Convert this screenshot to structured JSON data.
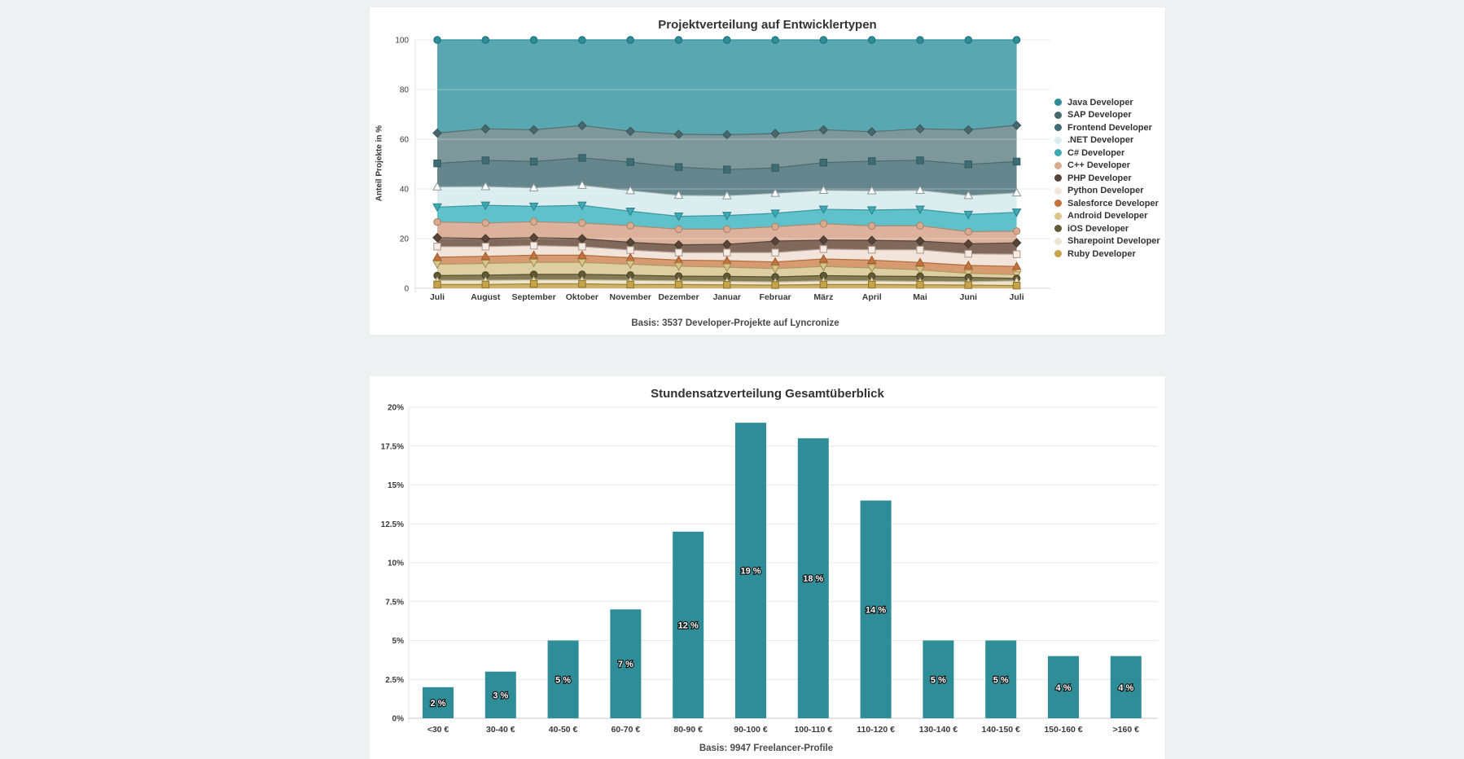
{
  "page": {
    "background_color": "#eff0f1",
    "card_color": "#ffffff"
  },
  "chart_data": [
    {
      "type": "area",
      "stacked": true,
      "title": "Projektverteilung auf Entwicklertypen",
      "ylabel": "Anteil Projekte in %",
      "caption": "Basis: 3537 Developer-Projekte auf Lyncronize",
      "ylim": [
        0,
        100
      ],
      "y_ticks": [
        0,
        20,
        40,
        60,
        80,
        100
      ],
      "grid": true,
      "legend_position": "right",
      "categories": [
        "Juli",
        "August",
        "September",
        "Oktober",
        "November",
        "Dezember",
        "Januar",
        "Februar",
        "März",
        "April",
        "Mai",
        "Juni",
        "Juli"
      ],
      "series": [
        {
          "name": "Java Developer",
          "marker": "circle",
          "fill": "#58a7b1",
          "line": "#2e8e98",
          "marker_fill": "#2e8e98",
          "marker_stroke": "#1f6b74",
          "cumulative_top": [
            100,
            100,
            100,
            100,
            100,
            100,
            100,
            100,
            100,
            100,
            100,
            100,
            100
          ]
        },
        {
          "name": "SAP Developer",
          "marker": "diamond",
          "fill": "#7d979a",
          "line": "#566d6f",
          "marker_fill": "#47686c",
          "marker_stroke": "#3a5557",
          "cumulative_top": [
            62.5,
            64.2,
            63.8,
            65.5,
            63.2,
            62.0,
            61.8,
            62.3,
            63.8,
            63.0,
            64.2,
            63.8,
            65.6
          ]
        },
        {
          "name": "Frontend Developer",
          "marker": "square",
          "fill": "#65868d",
          "line": "#4d6a6d",
          "marker_fill": "#3e6d74",
          "marker_stroke": "#315a60",
          "cumulative_top": [
            50.3,
            51.5,
            51.0,
            52.5,
            50.8,
            48.8,
            47.8,
            48.5,
            50.6,
            51.2,
            51.5,
            49.9,
            51.0
          ]
        },
        {
          "name": ".NET Developer",
          "marker": "triangle-up",
          "fill": "#dcedef",
          "line": "#93a3a4",
          "marker_fill": "#fdfdfd",
          "marker_stroke": "#8a9a9b",
          "cumulative_top": [
            40.9,
            41.0,
            40.5,
            41.5,
            39.4,
            37.5,
            37.3,
            38.3,
            39.5,
            39.3,
            39.5,
            37.4,
            38.5
          ]
        },
        {
          "name": "C# Developer",
          "marker": "triangle-down",
          "fill": "#5fc1c9",
          "line": "#3b98a2",
          "marker_fill": "#3fa9b3",
          "marker_stroke": "#2d818b",
          "cumulative_top": [
            32.7,
            33.4,
            33.0,
            33.4,
            31.0,
            29.0,
            29.3,
            30.2,
            31.8,
            31.5,
            31.8,
            29.7,
            30.6
          ]
        },
        {
          "name": "C++ Developer",
          "marker": "circle",
          "fill": "#dcb29c",
          "line": "#ab8a74",
          "marker_fill": "#d8ab91",
          "marker_stroke": "#a87f62",
          "cumulative_top": [
            26.7,
            26.3,
            26.8,
            26.3,
            25.2,
            23.8,
            23.8,
            24.8,
            26.0,
            25.1,
            25.2,
            22.8,
            23.0
          ]
        },
        {
          "name": "PHP Developer",
          "marker": "diamond",
          "fill": "#80685a",
          "line": "#54473c",
          "marker_fill": "#57453a",
          "marker_stroke": "#453629",
          "cumulative_top": [
            20.4,
            20.0,
            20.4,
            20.0,
            18.5,
            17.5,
            17.7,
            19.0,
            19.4,
            19.3,
            19.0,
            17.9,
            18.3
          ]
        },
        {
          "name": "Python Developer",
          "marker": "square",
          "fill": "#f2e4db",
          "line": "#b3a096",
          "marker_fill": "#f7ece5",
          "marker_stroke": "#a99788",
          "cumulative_top": [
            16.8,
            16.8,
            17.2,
            16.8,
            15.4,
            14.4,
            14.4,
            14.4,
            15.8,
            15.5,
            15.5,
            13.9,
            13.7
          ]
        },
        {
          "name": "Salesforce Developer",
          "marker": "triangle-up",
          "fill": "#d89b71",
          "line": "#ad6c3e",
          "marker_fill": "#c4733f",
          "marker_stroke": "#9c5a2c",
          "cumulative_top": [
            12.5,
            12.9,
            13.3,
            13.3,
            12.3,
            11.3,
            11.1,
            10.6,
            11.8,
            11.3,
            10.4,
            9.2,
            8.8
          ]
        },
        {
          "name": "Android Developer",
          "marker": "triangle-down",
          "fill": "#ddcfa1",
          "line": "#ab9a64",
          "marker_fill": "#d9c58b",
          "marker_stroke": "#9f8c4f",
          "cumulative_top": [
            9.7,
            10.0,
            10.4,
            10.4,
            9.7,
            8.9,
            8.5,
            7.9,
            8.8,
            8.2,
            7.4,
            6.0,
            5.5
          ]
        },
        {
          "name": "iOS Developer",
          "marker": "circle",
          "fill": "#827b55",
          "line": "#57512f",
          "marker_fill": "#5f5936",
          "marker_stroke": "#47421f",
          "cumulative_top": [
            5.1,
            5.3,
            5.6,
            5.6,
            5.3,
            4.9,
            4.8,
            4.6,
            5.1,
            4.9,
            4.8,
            4.4,
            4.0
          ]
        },
        {
          "name": "Sharepoint Developer",
          "marker": "triangle-up-small",
          "fill": "#ece5cf",
          "line": "#bdb291",
          "marker_fill": "#f1ebd8",
          "marker_stroke": "#ada183",
          "cumulative_top": [
            3.2,
            3.2,
            3.4,
            3.4,
            3.2,
            3.0,
            2.8,
            2.6,
            3.0,
            3.0,
            2.8,
            2.7,
            3.0
          ]
        },
        {
          "name": "Ruby Developer",
          "marker": "square",
          "fill": "#ccb166",
          "line": "#a18435",
          "marker_fill": "#c6a349",
          "marker_stroke": "#8d7426",
          "cumulative_top": [
            1.5,
            1.5,
            1.8,
            1.8,
            1.5,
            1.5,
            1.4,
            1.3,
            1.5,
            1.5,
            1.4,
            1.3,
            1.1
          ]
        }
      ]
    },
    {
      "type": "bar",
      "title": "Stundensatzverteilung Gesamtüberblick",
      "caption": "Basis: 9947 Freelancer-Profile",
      "ylim": [
        0,
        20
      ],
      "y_tick_values": [
        0,
        2.5,
        5,
        7.5,
        10,
        12.5,
        15,
        17.5,
        20
      ],
      "y_tick_labels": [
        "0%",
        "2.5%",
        "5%",
        "7.5%",
        "10%",
        "12.5%",
        "15%",
        "17.5%",
        "20%"
      ],
      "grid": true,
      "bar_color": "#2f8d98",
      "categories": [
        "<30 €",
        "30-40 €",
        "40-50 €",
        "60-70 €",
        "80-90 €",
        "90-100 €",
        "100-110 €",
        "110-120 €",
        "130-140 €",
        "140-150 €",
        "150-160 €",
        ">160 €"
      ],
      "values": [
        2,
        3,
        5,
        7,
        12,
        19,
        18,
        14,
        5,
        5,
        4,
        4
      ],
      "bar_labels": [
        "2 %",
        "3 %",
        "5 %",
        "7 %",
        "12 %",
        "19 %",
        "18 %",
        "14 %",
        "5 %",
        "5 %",
        "4 %",
        "4 %"
      ]
    }
  ]
}
